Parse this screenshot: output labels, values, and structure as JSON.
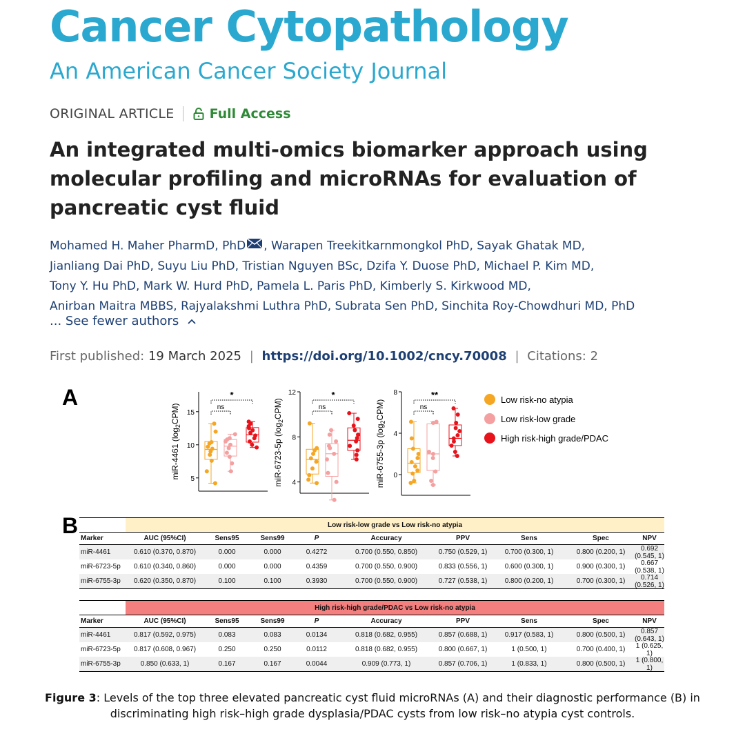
{
  "journal": {
    "title": "Cancer Cytopathology",
    "subtitle": "An American Cancer Society Journal",
    "color": "#2aa8cf"
  },
  "article": {
    "type": "ORIGINAL ARTICLE",
    "access": "Full Access",
    "access_icon": "lock-open-icon",
    "title": "An integrated multi-omics biomarker approach using molecular profiling and microRNAs for evaluation of pancreatic cyst fluid",
    "authors_line1_a": "Mohamed H. Maher PharmD, PhD",
    "authors_line1_b": ", Warapen Treekitkarnmongkol PhD, Sayak Ghatak MD,",
    "authors_line2": "Jianliang Dai PhD, Suyu Liu PhD, Tristian Nguyen BSc, Dzifa Y. Duose PhD, Michael P. Kim MD,",
    "authors_line3": "Tony Y. Hu PhD, Mark W. Hurd PhD, Pamela L. Paris PhD, Kimberly S. Kirkwood MD,",
    "authors_line4": "Anirban Maitra MBBS, Rajyalakshmi Luthra PhD, Subrata Sen PhD, Sinchita Roy-Chowdhuri MD, PhD",
    "see_fewer": "... See fewer authors",
    "first_published_label": "First published:",
    "first_published_date": "19 March 2025",
    "doi": "https://doi.org/10.1002/cncy.70008",
    "citations": "Citations: 2"
  },
  "figure": {
    "panel_a_label": "A",
    "panel_b_label": "B",
    "legend": [
      {
        "label": "Low risk-no atypia",
        "color": "#f5a623"
      },
      {
        "label": "Low risk-low grade",
        "color": "#f4a0a0"
      },
      {
        "label": "High risk-high grade/PDAC",
        "color": "#e8121b"
      }
    ],
    "caption_bold": "Figure 3",
    "caption_text": ": Levels of the top three elevated pancreatic cyst fluid microRNAs (A) and their diagnostic performance (B) in discriminating high risk–high grade dysplasia/PDAC cysts from low risk–no atypia cyst controls."
  },
  "chart_data": [
    {
      "type": "box",
      "ylabel": "miR-4461 (log2CPM)",
      "ylabel_main": "miR-4461 (log",
      "ylabel_sub": "2",
      "ylabel_end": "CPM)",
      "ylim": [
        3,
        18
      ],
      "yticks": [
        5,
        10,
        15
      ],
      "significance": [
        {
          "from": 0,
          "to": 1,
          "label": "ns"
        },
        {
          "from": 0,
          "to": 2,
          "label": "*"
        }
      ],
      "series": [
        {
          "name": "Low risk-no atypia",
          "min": 4.2,
          "q1": 7.8,
          "median": 9.3,
          "q3": 10.5,
          "max": 13.2,
          "points": [
            4.2,
            6.0,
            7.6,
            8.5,
            9.0,
            9.4,
            9.7,
            10.2,
            10.4,
            12.0,
            13.2
          ]
        },
        {
          "name": "Low risk-low grade",
          "min": 6.0,
          "q1": 8.3,
          "median": 9.8,
          "q3": 10.8,
          "max": 11.6,
          "points": [
            6.0,
            7.2,
            8.2,
            8.8,
            9.5,
            10.0,
            10.5,
            10.8,
            11.0,
            11.6
          ]
        },
        {
          "name": "High risk-high grade/PDAC",
          "min": 9.6,
          "q1": 10.4,
          "median": 11.5,
          "q3": 12.6,
          "max": 13.5,
          "points": [
            9.6,
            10.0,
            10.5,
            11.0,
            11.4,
            11.8,
            12.2,
            12.5,
            12.8,
            13.2,
            13.5
          ]
        }
      ]
    },
    {
      "type": "box",
      "ylabel": "miR-6723-5p (log2CPM)",
      "ylabel_main": "miR-6723-5p (log",
      "ylabel_sub": "2",
      "ylabel_end": "CPM)",
      "ylim": [
        3,
        12
      ],
      "yticks": [
        4,
        8,
        12
      ],
      "significance": [
        {
          "from": 0,
          "to": 1,
          "label": "ns"
        },
        {
          "from": 0,
          "to": 2,
          "label": "*"
        }
      ],
      "series": [
        {
          "name": "Low risk-no atypia",
          "min": 3.9,
          "q1": 4.7,
          "median": 6.0,
          "q3": 6.9,
          "max": 9.2,
          "points": [
            3.9,
            4.2,
            4.6,
            5.2,
            5.8,
            6.1,
            6.5,
            6.8,
            7.0,
            9.2
          ]
        },
        {
          "name": "Low risk-low grade",
          "min": 2.4,
          "q1": 4.5,
          "median": 6.5,
          "q3": 7.4,
          "max": 8.6,
          "points": [
            2.4,
            4.0,
            4.8,
            6.0,
            6.5,
            7.0,
            7.2,
            7.6,
            8.2,
            8.6
          ]
        },
        {
          "name": "High risk-high grade/PDAC",
          "min": 6.0,
          "q1": 6.8,
          "median": 7.7,
          "q3": 8.8,
          "max": 10.1,
          "points": [
            6.0,
            6.4,
            6.8,
            7.2,
            7.6,
            7.9,
            8.2,
            8.6,
            9.0,
            9.6,
            10.1
          ]
        }
      ]
    },
    {
      "type": "box",
      "ylabel": "miR-6755-3p (log2CPM)",
      "ylabel_main": "miR-6755-3p (log",
      "ylabel_sub": "2",
      "ylabel_end": "CPM)",
      "ylim": [
        -2,
        8
      ],
      "yticks": [
        0,
        4,
        8
      ],
      "significance": [
        {
          "from": 0,
          "to": 1,
          "label": "ns"
        },
        {
          "from": 0,
          "to": 2,
          "label": "**"
        }
      ],
      "series": [
        {
          "name": "Low risk-no atypia",
          "min": -0.8,
          "q1": 0.2,
          "median": 1.1,
          "q3": 2.5,
          "max": 5.1,
          "points": [
            -0.8,
            -0.6,
            0.1,
            0.4,
            0.8,
            1.2,
            1.6,
            2.0,
            2.5,
            3.5,
            5.1
          ]
        },
        {
          "name": "Low risk-low grade",
          "min": -1.0,
          "q1": 0.4,
          "median": 2.0,
          "q3": 4.9,
          "max": 5.1,
          "points": [
            -1.0,
            -0.6,
            0.3,
            1.6,
            2.0,
            2.2,
            5.0,
            5.1
          ]
        },
        {
          "name": "High risk-high grade/PDAC",
          "min": 1.8,
          "q1": 2.8,
          "median": 3.5,
          "q3": 4.8,
          "max": 6.4,
          "points": [
            1.8,
            2.2,
            2.8,
            3.2,
            3.5,
            3.8,
            4.2,
            4.5,
            5.0,
            5.8,
            6.4
          ]
        }
      ]
    }
  ],
  "tables": [
    {
      "title": "Low risk-low grade vs Low risk-no atypia",
      "title_color": "#fff0c8",
      "headers": [
        "Marker",
        "AUC (95%CI)",
        "Sens95",
        "Sens99",
        "P",
        "Accuracy",
        "PPV",
        "Sens",
        "Spec",
        "NPV"
      ],
      "rows": [
        [
          "miR-4461",
          "0.610 (0.370, 0.870)",
          "0.000",
          "0.000",
          "0.4272",
          "0.700 (0.550, 0.850)",
          "0.750 (0.529, 1)",
          "0.700 (0.300, 1)",
          "0.800 (0.200, 1)",
          "0.692 (0.545, 1)"
        ],
        [
          "miR-6723-5p",
          "0.610 (0.340, 0.860)",
          "0.000",
          "0.000",
          "0.4359",
          "0.700 (0.550, 0.900)",
          "0.833 (0.556, 1)",
          "0.600 (0.300, 1)",
          "0.900 (0.300, 1)",
          "0.667 (0.538, 1)"
        ],
        [
          "miR-6755-3p",
          "0.620 (0.350, 0.870)",
          "0.100",
          "0.100",
          "0.3930",
          "0.700 (0.550, 0.900)",
          "0.727 (0.538, 1)",
          "0.800 (0.200, 1)",
          "0.700 (0.300, 1)",
          "0.714 (0.526, 1)"
        ]
      ]
    },
    {
      "title": "High risk-high grade/PDAC vs Low risk-no atypia",
      "title_color": "#f47f7f",
      "headers": [
        "Marker",
        "AUC (95%CI)",
        "Sens95",
        "Sens99",
        "P",
        "Accuracy",
        "PPV",
        "Sens",
        "Spec",
        "NPV"
      ],
      "rows": [
        [
          "miR-4461",
          "0.817 (0.592, 0.975)",
          "0.083",
          "0.083",
          "0.0134",
          "0.818 (0.682, 0.955)",
          "0.857 (0.688, 1)",
          "0.917 (0.583, 1)",
          "0.800 (0.500, 1)",
          "0.857 (0.643, 1)"
        ],
        [
          "miR-6723-5p",
          "0.817 (0.608, 0.967)",
          "0.250",
          "0.250",
          "0.0112",
          "0.818 (0.682, 0.955)",
          "0.800 (0.667, 1)",
          "1 (0.500, 1)",
          "0.700 (0.400, 1)",
          "1 (0.625, 1)"
        ],
        [
          "miR-6755-3p",
          "0.850 (0.633, 1)",
          "0.167",
          "0.167",
          "0.0044",
          "0.909 (0.773, 1)",
          "0.857 (0.706, 1)",
          "1 (0.833, 1)",
          "0.800 (0.500, 1)",
          "1 (0.800, 1)"
        ]
      ]
    }
  ]
}
